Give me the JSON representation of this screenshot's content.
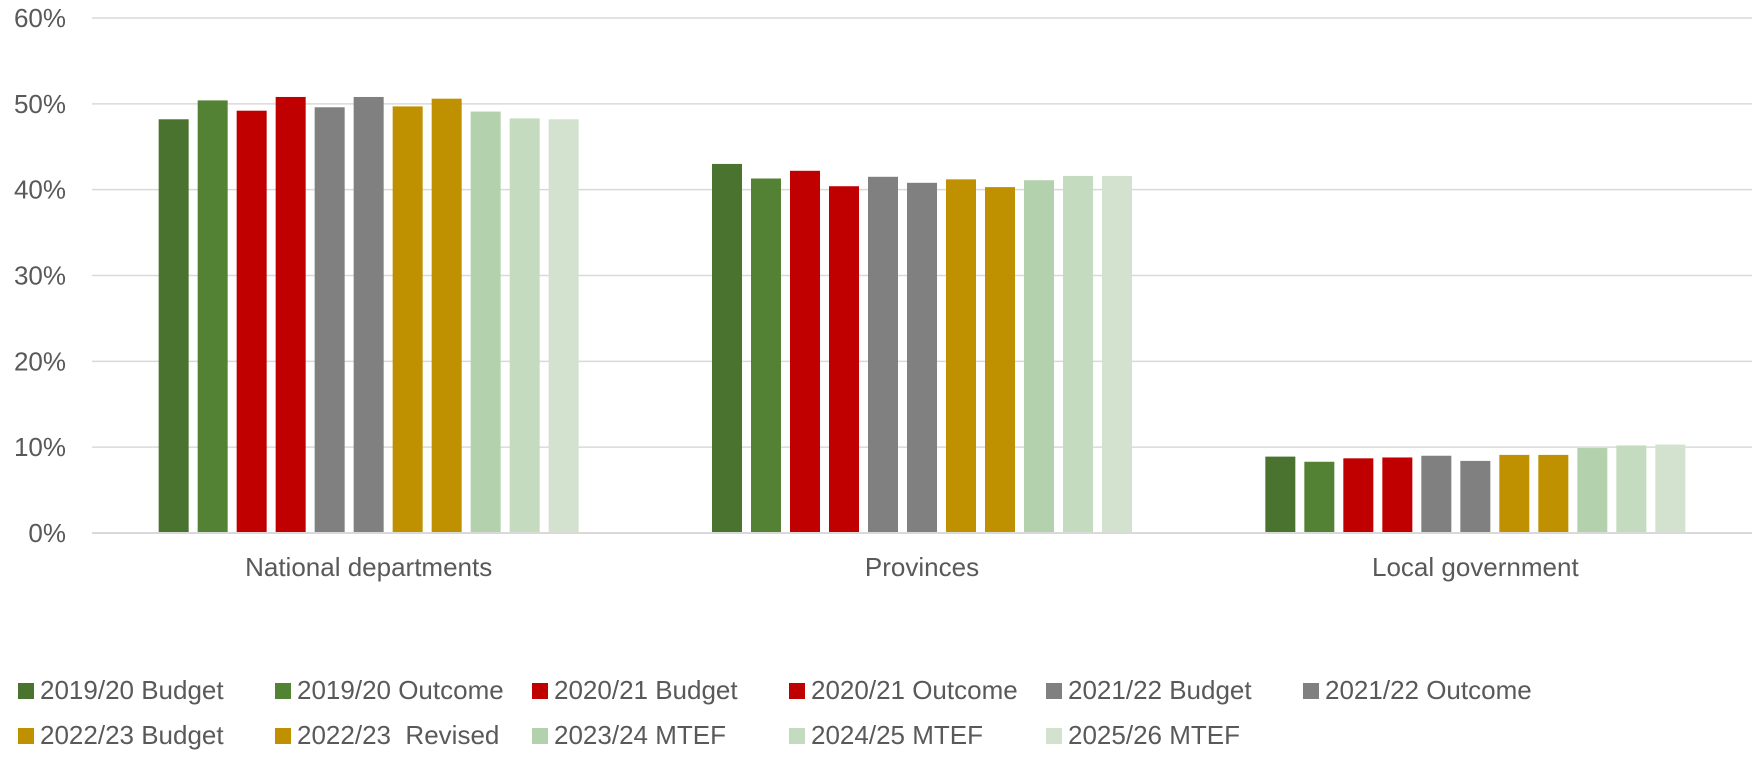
{
  "chart_data": {
    "type": "bar",
    "categories": [
      "National departments",
      "Provinces",
      "Local government"
    ],
    "ylim": [
      0,
      60
    ],
    "yticks": [
      "0%",
      "10%",
      "20%",
      "30%",
      "40%",
      "50%",
      "60%"
    ],
    "grid": true,
    "legend_position": "bottom",
    "series": [
      {
        "name": "2019/20 Budget",
        "color": "#4a7330",
        "values": [
          48.2,
          43.0,
          8.9
        ]
      },
      {
        "name": "2019/20 Outcome",
        "color": "#548235",
        "values": [
          50.4,
          41.3,
          8.3
        ]
      },
      {
        "name": "2020/21 Budget",
        "color": "#c00000",
        "values": [
          49.2,
          42.2,
          8.7
        ]
      },
      {
        "name": "2020/21 Outcome",
        "color": "#c00000",
        "values": [
          50.8,
          40.4,
          8.8
        ]
      },
      {
        "name": "2021/22 Budget",
        "color": "#808080",
        "values": [
          49.6,
          41.5,
          9.0
        ]
      },
      {
        "name": "2021/22 Outcome",
        "color": "#808080",
        "values": [
          50.8,
          40.8,
          8.4
        ]
      },
      {
        "name": "2022/23 Budget",
        "color": "#bf9000",
        "values": [
          49.7,
          41.2,
          9.1
        ]
      },
      {
        "name": "2022/23  Revised",
        "color": "#bf9000",
        "values": [
          50.6,
          40.3,
          9.1
        ]
      },
      {
        "name": "2023/24 MTEF",
        "color": "#b4d1ad",
        "values": [
          49.1,
          41.1,
          9.9
        ]
      },
      {
        "name": "2024/25 MTEF",
        "color": "#c4dbbf",
        "values": [
          48.3,
          41.6,
          10.2
        ]
      },
      {
        "name": "2025/26 MTEF",
        "color": "#d3e2cf",
        "values": [
          48.2,
          41.6,
          10.3
        ]
      }
    ]
  }
}
